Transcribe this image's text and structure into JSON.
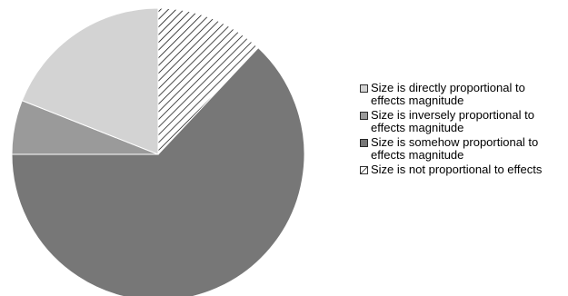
{
  "chart_data": {
    "type": "pie",
    "slices": [
      {
        "label": "Size is not proportional to effects",
        "value": 12,
        "color": "#ffffff",
        "pattern": "hatch"
      },
      {
        "label": "Size is somehow proportional to effects magnitude",
        "value": 63,
        "color": "#777777"
      },
      {
        "label": "Size is inversely proportional to effects magnitude",
        "value": 6,
        "color": "#9a9a9a"
      },
      {
        "label": "Size is directly proportional to effects magnitude",
        "value": 19,
        "color": "#d3d3d3"
      }
    ],
    "legend": {
      "position": "right",
      "entries": [
        {
          "label": "Size is directly proportional to effects magnitude",
          "color": "#d3d3d3",
          "pattern": "solid"
        },
        {
          "label": "Size is inversely proportional to effects magnitude",
          "color": "#9a9a9a",
          "pattern": "solid"
        },
        {
          "label": "Size is somehow proportional to effects magnitude",
          "color": "#777777",
          "pattern": "solid"
        },
        {
          "label": "Size is not proportional to effects",
          "color": "#ffffff",
          "pattern": "hatch"
        }
      ]
    }
  }
}
